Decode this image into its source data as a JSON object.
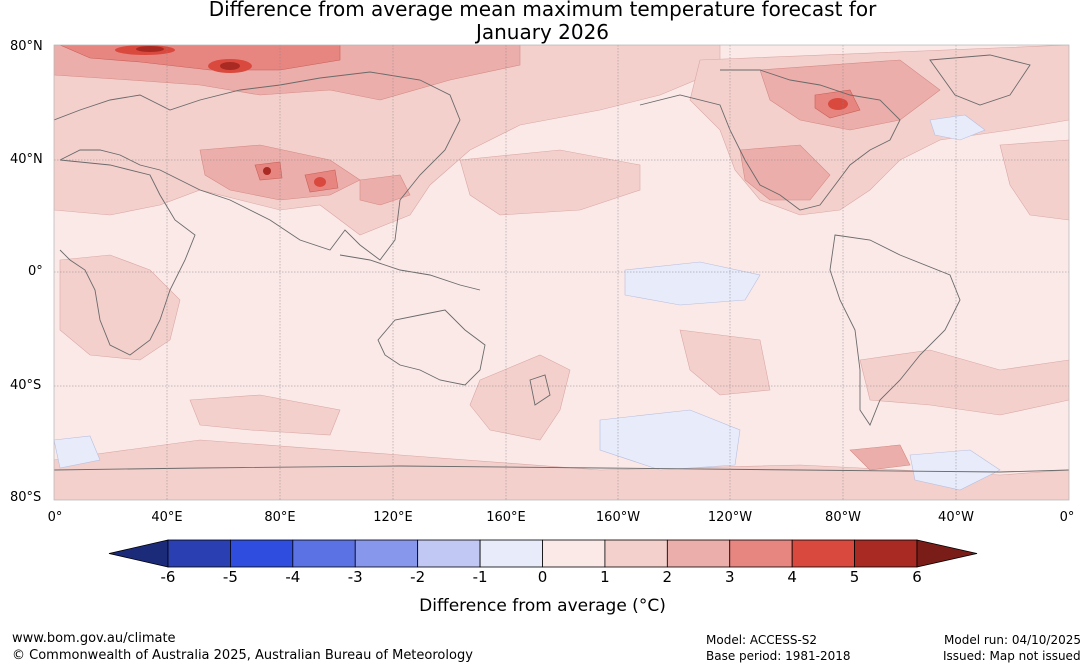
{
  "title": {
    "line1": "Difference from average mean maximum temperature forecast for",
    "line2": "January 2026"
  },
  "map": {
    "lat_labels": [
      "80°N",
      "40°N",
      "0°",
      "40°S",
      "80°S"
    ],
    "lon_labels": [
      "0°",
      "40°E",
      "80°E",
      "120°E",
      "160°E",
      "160°W",
      "120°W",
      "80°W",
      "40°W",
      "0°"
    ]
  },
  "colorbar": {
    "ticks": [
      "-6",
      "-5",
      "-4",
      "-3",
      "-2",
      "-1",
      "0",
      "1",
      "2",
      "3",
      "4",
      "5",
      "6"
    ],
    "colors": [
      "#1c2a7a",
      "#2a3fb1",
      "#2f4ee0",
      "#5b72e4",
      "#8797ec",
      "#c0c8f3",
      "#e7ebfa",
      "#fbe9e8",
      "#f4d0cd",
      "#ecaeaa",
      "#e78681",
      "#d9493e",
      "#a92a22",
      "#7a1c18"
    ],
    "label": "Difference from average (°C)",
    "label_text": "Difference from average (",
    "label_unit": "°C",
    "label_close": ")"
  },
  "footer": {
    "website": "www.bom.gov.au/climate",
    "copyright": "© Commonwealth of Australia 2025, Australian Bureau of Meteorology",
    "model": "Model: ACCESS-S2",
    "base_period": "Base period: 1981-2018",
    "model_run": "Model run: 04/10/2025",
    "issued": "Issued: Map not issued"
  }
}
